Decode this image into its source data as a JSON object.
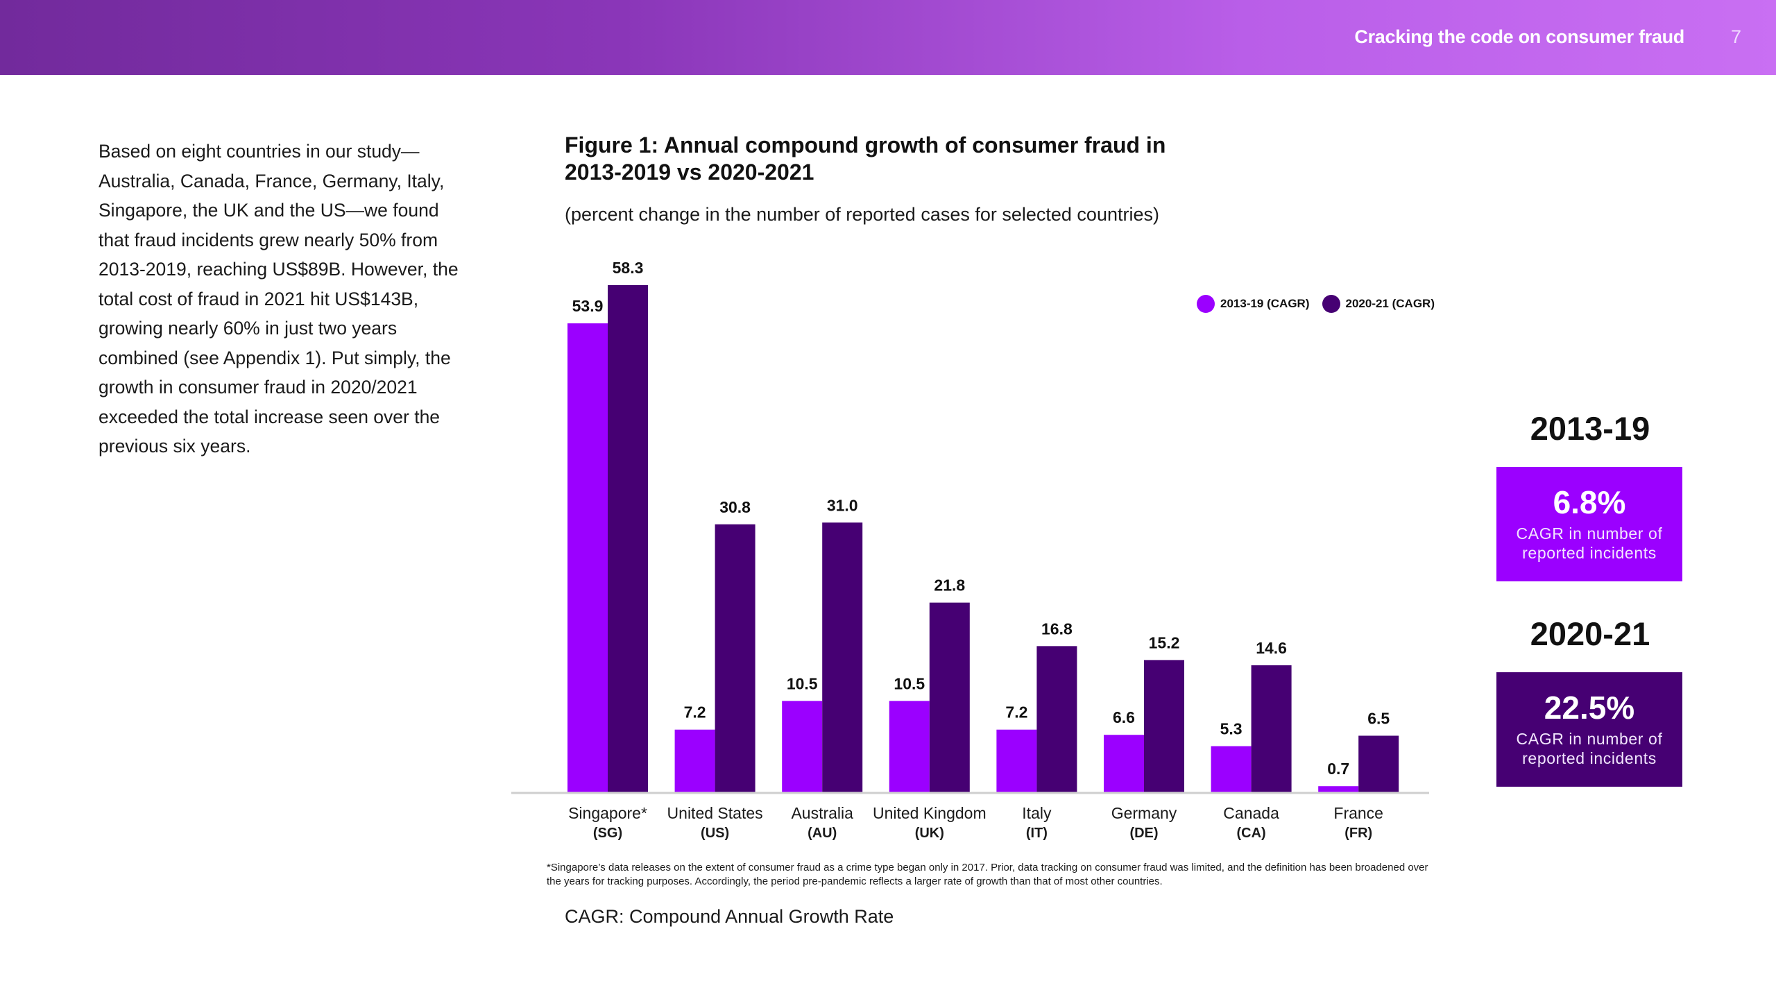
{
  "header": {
    "title": "Cracking the code on consumer fraud",
    "page_number": "7"
  },
  "body_text": "Based on eight countries in our study—Australia, Canada, France, Germany, Italy, Singapore, the UK and the US—we found that fraud incidents grew nearly 50% from 2013-2019, reaching US$89B. However, the total cost of fraud in 2021 hit US$143B, growing nearly 60% in just two years combined (see Appendix 1). Put simply, the growth in consumer fraud in 2020/2021 exceeded the total increase seen over the previous six years.",
  "colors": {
    "series_2013_19": "#9b00ff",
    "series_2020_21": "#460073",
    "header_start": "#722a9c",
    "header_end": "#c96ff3"
  },
  "chart_data": {
    "type": "bar",
    "title": "Figure 1: Annual compound growth of consumer fraud in 2013-2019 vs 2020-2021",
    "subtitle": "(percent change in the number of reported cases for selected countries)",
    "xlabel": "",
    "ylabel": "",
    "ylim": [
      0,
      60
    ],
    "grid": false,
    "legend_position": "top-right",
    "categories": [
      "Singapore*",
      "United States",
      "Australia",
      "United Kingdom",
      "Italy",
      "Germany",
      "Canada",
      "France"
    ],
    "category_codes": [
      "(SG)",
      "(US)",
      "(AU)",
      "(UK)",
      "(IT)",
      "(DE)",
      "(CA)",
      "(FR)"
    ],
    "series": [
      {
        "name": "2013-19 (CAGR)",
        "values": [
          53.9,
          7.2,
          10.5,
          10.5,
          7.2,
          6.6,
          5.3,
          0.7
        ]
      },
      {
        "name": "2020-21 (CAGR)",
        "values": [
          58.3,
          30.8,
          31.0,
          21.8,
          16.8,
          15.2,
          14.6,
          6.5
        ]
      }
    ],
    "value_labels": [
      [
        "53.9",
        "7.2",
        "10.5",
        "10.5",
        "7.2",
        "6.6",
        "5.3",
        "0.7"
      ],
      [
        "58.3",
        "30.8",
        "31.0",
        "21.8",
        "16.8",
        "15.2",
        "14.6",
        "6.5"
      ]
    ]
  },
  "legend": [
    {
      "label": "2013-19 (CAGR)"
    },
    {
      "label": "2020-21 (CAGR)"
    }
  ],
  "footnote": "*Singapore’s data releases on the extent of consumer fraud as a crime type began only in 2017. Prior, data tracking on consumer fraud was limited, and the definition has been broadened over the years for tracking purposes. Accordingly, the period pre-pandemic reflects a larger rate of growth than that of most other countries.",
  "cagr_note": "CAGR: Compound Annual Growth Rate",
  "summary": [
    {
      "period": "2013-19",
      "value": "6.8%",
      "description": "CAGR in number of reported incidents"
    },
    {
      "period": "2020-21",
      "value": "22.5%",
      "description": "CAGR in number of reported incidents"
    }
  ]
}
